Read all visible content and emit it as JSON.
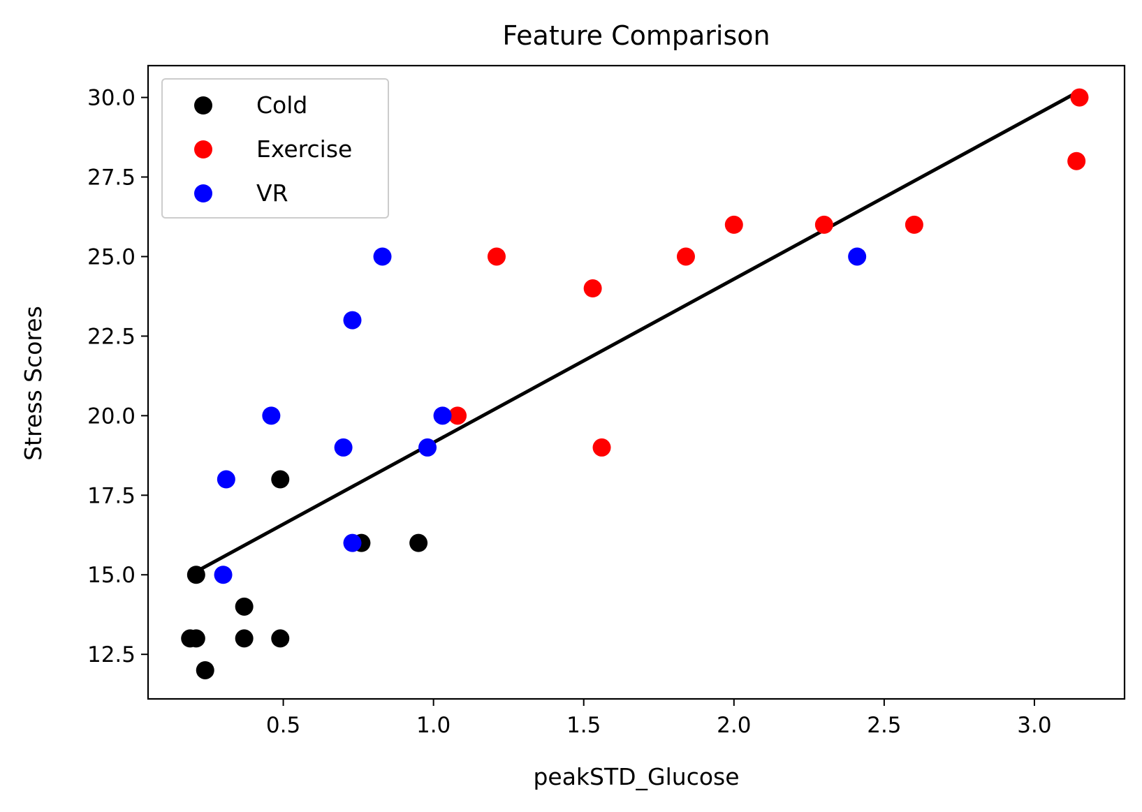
{
  "chart_data": {
    "type": "scatter",
    "title": "Feature Comparison",
    "xlabel": "peakSTD_Glucose",
    "ylabel": "Stress Scores",
    "xlim": [
      0.05,
      3.3
    ],
    "ylim": [
      11.1,
      31.0
    ],
    "xticks": [
      0.5,
      1.0,
      1.5,
      2.0,
      2.5,
      3.0
    ],
    "xtick_labels": [
      "0.5",
      "1.0",
      "1.5",
      "2.0",
      "2.5",
      "3.0"
    ],
    "yticks": [
      12.5,
      15.0,
      17.5,
      20.0,
      22.5,
      25.0,
      27.5,
      30.0
    ],
    "ytick_labels": [
      "12.5",
      "15.0",
      "17.5",
      "20.0",
      "22.5",
      "25.0",
      "27.5",
      "30.0"
    ],
    "grid": false,
    "legend_position": "top-left",
    "series": [
      {
        "name": "Cold",
        "color": "#000000",
        "points": [
          [
            0.19,
            13
          ],
          [
            0.21,
            13
          ],
          [
            0.24,
            12
          ],
          [
            0.21,
            15
          ],
          [
            0.37,
            14
          ],
          [
            0.37,
            13
          ],
          [
            0.49,
            13
          ],
          [
            0.49,
            18
          ],
          [
            0.76,
            16
          ],
          [
            0.95,
            16
          ]
        ]
      },
      {
        "name": "Exercise",
        "color": "#ff0000",
        "points": [
          [
            1.08,
            20
          ],
          [
            1.21,
            25
          ],
          [
            1.53,
            24
          ],
          [
            1.56,
            19
          ],
          [
            1.84,
            25
          ],
          [
            2.0,
            26
          ],
          [
            2.3,
            26
          ],
          [
            2.6,
            26
          ],
          [
            3.14,
            28
          ],
          [
            3.15,
            30
          ]
        ]
      },
      {
        "name": "VR",
        "color": "#0000ff",
        "points": [
          [
            0.3,
            15
          ],
          [
            0.31,
            18
          ],
          [
            0.46,
            20
          ],
          [
            0.7,
            19
          ],
          [
            0.73,
            16
          ],
          [
            0.73,
            23
          ],
          [
            0.83,
            25
          ],
          [
            0.98,
            19
          ],
          [
            1.03,
            20
          ],
          [
            2.41,
            25
          ]
        ]
      }
    ],
    "fit_line": {
      "color": "#000000",
      "points": [
        [
          0.21,
          15.1
        ],
        [
          3.15,
          30.2
        ]
      ]
    }
  }
}
